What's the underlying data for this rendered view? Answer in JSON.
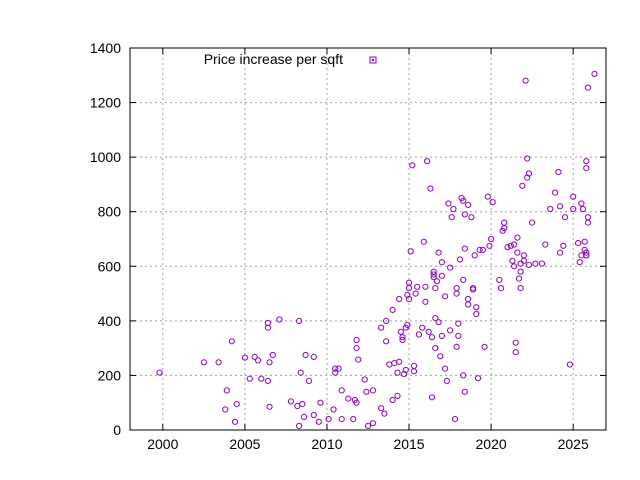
{
  "chart_data": {
    "type": "scatter",
    "title": "",
    "xlabel": "",
    "ylabel": "",
    "xlim": [
      1998,
      2027
    ],
    "ylim": [
      0,
      1400
    ],
    "xticks": [
      2000,
      2005,
      2010,
      2015,
      2020,
      2025
    ],
    "yticks": [
      0,
      200,
      400,
      600,
      800,
      1000,
      1200,
      1400
    ],
    "grid": true,
    "legend_position": "top-left",
    "series": [
      {
        "name": "Price increase per sqft",
        "color": "#9400d3",
        "marker": "open-circle",
        "points": [
          [
            1999.8,
            210
          ],
          [
            2002.5,
            248
          ],
          [
            2003.4,
            248
          ],
          [
            2003.8,
            75
          ],
          [
            2003.9,
            145
          ],
          [
            2004.2,
            325
          ],
          [
            2004.4,
            30
          ],
          [
            2004.5,
            95
          ],
          [
            2005.0,
            265
          ],
          [
            2005.3,
            188
          ],
          [
            2005.6,
            268
          ],
          [
            2005.8,
            255
          ],
          [
            2006.0,
            188
          ],
          [
            2006.4,
            375
          ],
          [
            2006.4,
            392
          ],
          [
            2006.4,
            180
          ],
          [
            2006.5,
            85
          ],
          [
            2006.5,
            248
          ],
          [
            2006.7,
            275
          ],
          [
            2007.1,
            405
          ],
          [
            2007.8,
            105
          ],
          [
            2008.2,
            88
          ],
          [
            2008.3,
            15
          ],
          [
            2008.3,
            400
          ],
          [
            2008.4,
            210
          ],
          [
            2008.5,
            95
          ],
          [
            2008.6,
            48
          ],
          [
            2008.7,
            275
          ],
          [
            2008.9,
            180
          ],
          [
            2009.2,
            268
          ],
          [
            2009.2,
            55
          ],
          [
            2009.5,
            30
          ],
          [
            2009.6,
            100
          ],
          [
            2010.1,
            40
          ],
          [
            2010.4,
            75
          ],
          [
            2010.5,
            210
          ],
          [
            2010.5,
            225
          ],
          [
            2010.7,
            225
          ],
          [
            2010.9,
            40
          ],
          [
            2010.9,
            145
          ],
          [
            2011.3,
            115
          ],
          [
            2011.6,
            40
          ],
          [
            2011.7,
            110
          ],
          [
            2011.8,
            100
          ],
          [
            2011.8,
            300
          ],
          [
            2011.8,
            330
          ],
          [
            2011.9,
            258
          ],
          [
            2012.3,
            185
          ],
          [
            2012.4,
            140
          ],
          [
            2012.5,
            15
          ],
          [
            2012.8,
            145
          ],
          [
            2012.8,
            25
          ],
          [
            2013.3,
            80
          ],
          [
            2013.3,
            375
          ],
          [
            2013.5,
            60
          ],
          [
            2013.6,
            400
          ],
          [
            2013.6,
            325
          ],
          [
            2013.8,
            240
          ],
          [
            2014.0,
            110
          ],
          [
            2014.0,
            440
          ],
          [
            2014.1,
            245
          ],
          [
            2014.3,
            210
          ],
          [
            2014.3,
            125
          ],
          [
            2014.4,
            480
          ],
          [
            2014.4,
            250
          ],
          [
            2014.5,
            360
          ],
          [
            2014.6,
            330
          ],
          [
            2014.6,
            340
          ],
          [
            2014.7,
            205
          ],
          [
            2014.8,
            220
          ],
          [
            2014.8,
            375
          ],
          [
            2014.9,
            385
          ],
          [
            2014.9,
            495
          ],
          [
            2015.0,
            480
          ],
          [
            2015.0,
            520
          ],
          [
            2015.0,
            540
          ],
          [
            2015.1,
            655
          ],
          [
            2015.2,
            970
          ],
          [
            2015.3,
            235
          ],
          [
            2015.3,
            215
          ],
          [
            2015.4,
            500
          ],
          [
            2015.5,
            525
          ],
          [
            2015.6,
            350
          ],
          [
            2015.8,
            375
          ],
          [
            2015.9,
            690
          ],
          [
            2016.0,
            525
          ],
          [
            2016.0,
            470
          ],
          [
            2016.1,
            985
          ],
          [
            2016.2,
            360
          ],
          [
            2016.3,
            885
          ],
          [
            2016.4,
            340
          ],
          [
            2016.4,
            120
          ],
          [
            2016.5,
            560
          ],
          [
            2016.5,
            570
          ],
          [
            2016.5,
            580
          ],
          [
            2016.6,
            520
          ],
          [
            2016.6,
            300
          ],
          [
            2016.6,
            410
          ],
          [
            2016.7,
            545
          ],
          [
            2016.8,
            650
          ],
          [
            2016.8,
            395
          ],
          [
            2016.9,
            270
          ],
          [
            2017.0,
            615
          ],
          [
            2017.0,
            345
          ],
          [
            2017.0,
            565
          ],
          [
            2017.2,
            490
          ],
          [
            2017.2,
            225
          ],
          [
            2017.3,
            180
          ],
          [
            2017.4,
            830
          ],
          [
            2017.5,
            365
          ],
          [
            2017.5,
            595
          ],
          [
            2017.6,
            780
          ],
          [
            2017.7,
            810
          ],
          [
            2017.8,
            40
          ],
          [
            2017.9,
            520
          ],
          [
            2017.9,
            305
          ],
          [
            2017.9,
            500
          ],
          [
            2018.0,
            390
          ],
          [
            2018.0,
            345
          ],
          [
            2018.1,
            625
          ],
          [
            2018.2,
            850
          ],
          [
            2018.3,
            840
          ],
          [
            2018.3,
            550
          ],
          [
            2018.3,
            200
          ],
          [
            2018.4,
            790
          ],
          [
            2018.4,
            665
          ],
          [
            2018.4,
            140
          ],
          [
            2018.6,
            460
          ],
          [
            2018.6,
            480
          ],
          [
            2018.6,
            825
          ],
          [
            2018.8,
            780
          ],
          [
            2018.9,
            515
          ],
          [
            2018.9,
            520
          ],
          [
            2019.0,
            640
          ],
          [
            2019.1,
            425
          ],
          [
            2019.1,
            450
          ],
          [
            2019.2,
            190
          ],
          [
            2019.3,
            660
          ],
          [
            2019.5,
            660
          ],
          [
            2019.6,
            305
          ],
          [
            2019.8,
            855
          ],
          [
            2019.9,
            675
          ],
          [
            2020.0,
            700
          ],
          [
            2020.1,
            835
          ],
          [
            2020.5,
            550
          ],
          [
            2020.6,
            520
          ],
          [
            2020.7,
            730
          ],
          [
            2020.8,
            740
          ],
          [
            2020.8,
            760
          ],
          [
            2021.0,
            670
          ],
          [
            2021.2,
            675
          ],
          [
            2021.3,
            620
          ],
          [
            2021.4,
            600
          ],
          [
            2021.4,
            680
          ],
          [
            2021.5,
            285
          ],
          [
            2021.5,
            320
          ],
          [
            2021.6,
            650
          ],
          [
            2021.6,
            705
          ],
          [
            2021.7,
            555
          ],
          [
            2021.8,
            580
          ],
          [
            2021.8,
            610
          ],
          [
            2021.8,
            520
          ],
          [
            2021.9,
            895
          ],
          [
            2022.0,
            640
          ],
          [
            2022.0,
            620
          ],
          [
            2022.1,
            1280
          ],
          [
            2022.2,
            995
          ],
          [
            2022.2,
            925
          ],
          [
            2022.3,
            940
          ],
          [
            2022.3,
            605
          ],
          [
            2022.5,
            760
          ],
          [
            2022.7,
            610
          ],
          [
            2023.1,
            610
          ],
          [
            2023.3,
            680
          ],
          [
            2023.6,
            810
          ],
          [
            2023.9,
            870
          ],
          [
            2024.1,
            945
          ],
          [
            2024.2,
            650
          ],
          [
            2024.2,
            820
          ],
          [
            2024.4,
            675
          ],
          [
            2024.5,
            780
          ],
          [
            2024.8,
            240
          ],
          [
            2025.0,
            810
          ],
          [
            2025.0,
            855
          ],
          [
            2025.3,
            685
          ],
          [
            2025.4,
            615
          ],
          [
            2025.5,
            640
          ],
          [
            2025.5,
            830
          ],
          [
            2025.6,
            810
          ],
          [
            2025.7,
            660
          ],
          [
            2025.7,
            690
          ],
          [
            2025.8,
            640
          ],
          [
            2025.8,
            650
          ],
          [
            2025.8,
            640
          ],
          [
            2025.8,
            985
          ],
          [
            2025.8,
            960
          ],
          [
            2025.9,
            760
          ],
          [
            2025.9,
            780
          ],
          [
            2025.9,
            1255
          ],
          [
            2026.3,
            1305
          ]
        ]
      }
    ]
  }
}
